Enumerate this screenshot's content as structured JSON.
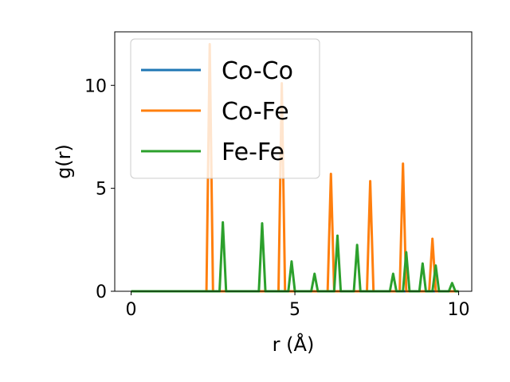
{
  "chart_data": {
    "type": "line",
    "title": "",
    "xlabel": "r (Å)",
    "ylabel": "g(r)",
    "xlim": [
      -0.5,
      10.4
    ],
    "ylim": [
      0,
      12.6
    ],
    "xticks": [
      0,
      5,
      10
    ],
    "yticks": [
      0,
      5,
      10
    ],
    "grid": false,
    "legend_position": "top-left",
    "series": [
      {
        "name": "Co-Co",
        "color": "#1f77b4",
        "x": [
          0,
          10
        ],
        "y": [
          0,
          0
        ]
      },
      {
        "name": "Co-Fe",
        "color": "#ff7f0e",
        "x": [
          0,
          2.3,
          2.4,
          2.5,
          4.5,
          4.6,
          4.7,
          6.0,
          6.1,
          6.2,
          7.2,
          7.3,
          7.4,
          8.2,
          8.3,
          8.4,
          9.1,
          9.2,
          9.3,
          10
        ],
        "y": [
          0,
          0,
          12.0,
          0,
          0,
          10.1,
          0,
          0,
          5.7,
          0,
          0,
          5.35,
          0,
          0,
          6.2,
          0,
          0,
          2.55,
          0,
          0
        ]
      },
      {
        "name": "Fe-Fe",
        "color": "#2ca02c",
        "x": [
          0,
          2.7,
          2.8,
          2.9,
          3.9,
          4.0,
          4.1,
          4.8,
          4.9,
          5.0,
          5.5,
          5.6,
          5.7,
          6.2,
          6.3,
          6.4,
          6.8,
          6.9,
          7.0,
          7.9,
          8.0,
          8.1,
          8.3,
          8.4,
          8.5,
          8.8,
          8.9,
          9.0,
          9.2,
          9.3,
          9.4,
          9.7,
          9.8,
          9.9,
          10
        ],
        "y": [
          0,
          0,
          3.35,
          0,
          0,
          3.3,
          0,
          0,
          1.45,
          0,
          0,
          0.85,
          0,
          0,
          2.7,
          0,
          0,
          2.25,
          0,
          0,
          0.85,
          0,
          0,
          1.9,
          0,
          0,
          1.35,
          0,
          0,
          1.25,
          0,
          0,
          0.4,
          0,
          0
        ]
      }
    ]
  }
}
